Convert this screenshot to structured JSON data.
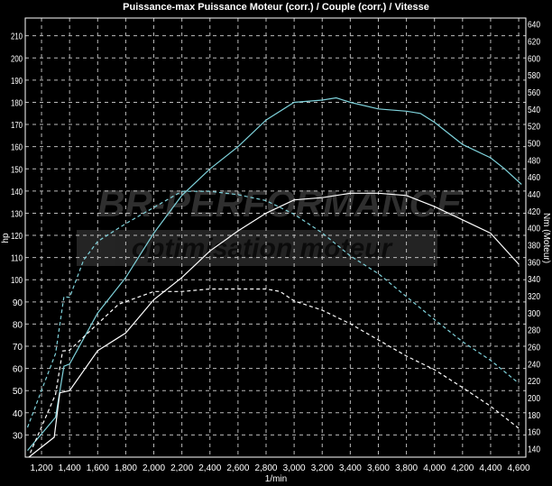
{
  "chart_data": {
    "type": "line",
    "title": "Puissance-max Puissance Moteur (corr.) / Couple (corr.) / Vitesse",
    "xlabel": "1/min",
    "ylabel_left": "hp",
    "ylabel_right": "Nm (Moteur)",
    "xlim": [
      1084,
      4651
    ],
    "ylim_left": [
      20,
      218
    ],
    "ylim_right": [
      130,
      647
    ],
    "x_ticks": [
      "1,200",
      "1,400",
      "1,600",
      "1,800",
      "2,000",
      "2,200",
      "2,400",
      "2,600",
      "2,800",
      "3,000",
      "3,200",
      "3,400",
      "3,600",
      "3,800",
      "4,000",
      "4,200",
      "4,400",
      "4,600"
    ],
    "x_tick_values": [
      1200,
      1400,
      1600,
      1800,
      2000,
      2200,
      2400,
      2600,
      2800,
      3000,
      3200,
      3400,
      3600,
      3800,
      4000,
      4200,
      4400,
      4600
    ],
    "y_left_ticks": [
      30,
      40,
      50,
      60,
      70,
      80,
      90,
      100,
      110,
      120,
      130,
      140,
      150,
      160,
      170,
      180,
      190,
      200,
      210
    ],
    "y_right_ticks": [
      140,
      160,
      180,
      200,
      220,
      240,
      260,
      280,
      300,
      320,
      340,
      360,
      380,
      400,
      420,
      440,
      460,
      480,
      500,
      520,
      540,
      560,
      580,
      600,
      620,
      640
    ],
    "grid": true,
    "background": "#000000",
    "watermark": "BR-PERFORMANCE optimisation moteur",
    "series": [
      {
        "axis": "left",
        "style": "solid",
        "color": "#7fd3dc",
        "x": [
          1100,
          1300,
          1360,
          1400,
          1600,
          1800,
          2000,
          2200,
          2400,
          2600,
          2800,
          3000,
          3200,
          3300,
          3400,
          3600,
          3800,
          3900,
          4000,
          4200,
          4400,
          4500,
          4620
        ],
        "y": [
          23,
          38,
          61,
          62,
          85,
          101,
          121,
          138,
          150,
          160,
          172,
          180,
          181,
          182,
          180,
          177,
          176,
          175,
          171,
          161,
          155,
          150,
          143
        ]
      },
      {
        "axis": "left",
        "style": "solid",
        "color": "#ffffff",
        "x": [
          1110,
          1290,
          1330,
          1400,
          1600,
          1800,
          2000,
          2200,
          2400,
          2600,
          2800,
          3000,
          3200,
          3400,
          3600,
          3800,
          4000,
          4200,
          4400,
          4600
        ],
        "y": [
          20,
          29,
          49,
          50,
          68,
          76,
          91,
          101,
          113,
          122,
          130,
          136,
          137,
          139,
          139,
          138,
          133,
          127,
          121,
          107
        ]
      },
      {
        "axis": "right",
        "style": "dashed",
        "color": "#7fd3dc",
        "x": [
          1100,
          1300,
          1360,
          1400,
          1500,
          1600,
          1800,
          2000,
          2200,
          2400,
          2600,
          2800,
          3000,
          3200,
          3400,
          3600,
          3800,
          4000,
          4200,
          4400,
          4600
        ],
        "y": [
          165,
          252,
          319,
          318,
          362,
          384,
          405,
          424,
          443,
          443,
          439,
          432,
          416,
          394,
          367,
          346,
          319,
          292,
          266,
          244,
          217
        ]
      },
      {
        "axis": "right",
        "style": "dashed",
        "color": "#ffffff",
        "x": [
          1120,
          1300,
          1350,
          1400,
          1600,
          1750,
          2000,
          2200,
          2400,
          2600,
          2800,
          2900,
          3000,
          3200,
          3400,
          3600,
          3800,
          4000,
          4200,
          4400,
          4600
        ],
        "y": [
          135,
          204,
          255,
          256,
          287,
          310,
          325,
          325,
          328,
          328,
          328,
          325,
          314,
          303,
          287,
          268,
          249,
          233,
          212,
          190,
          164
        ]
      }
    ]
  }
}
